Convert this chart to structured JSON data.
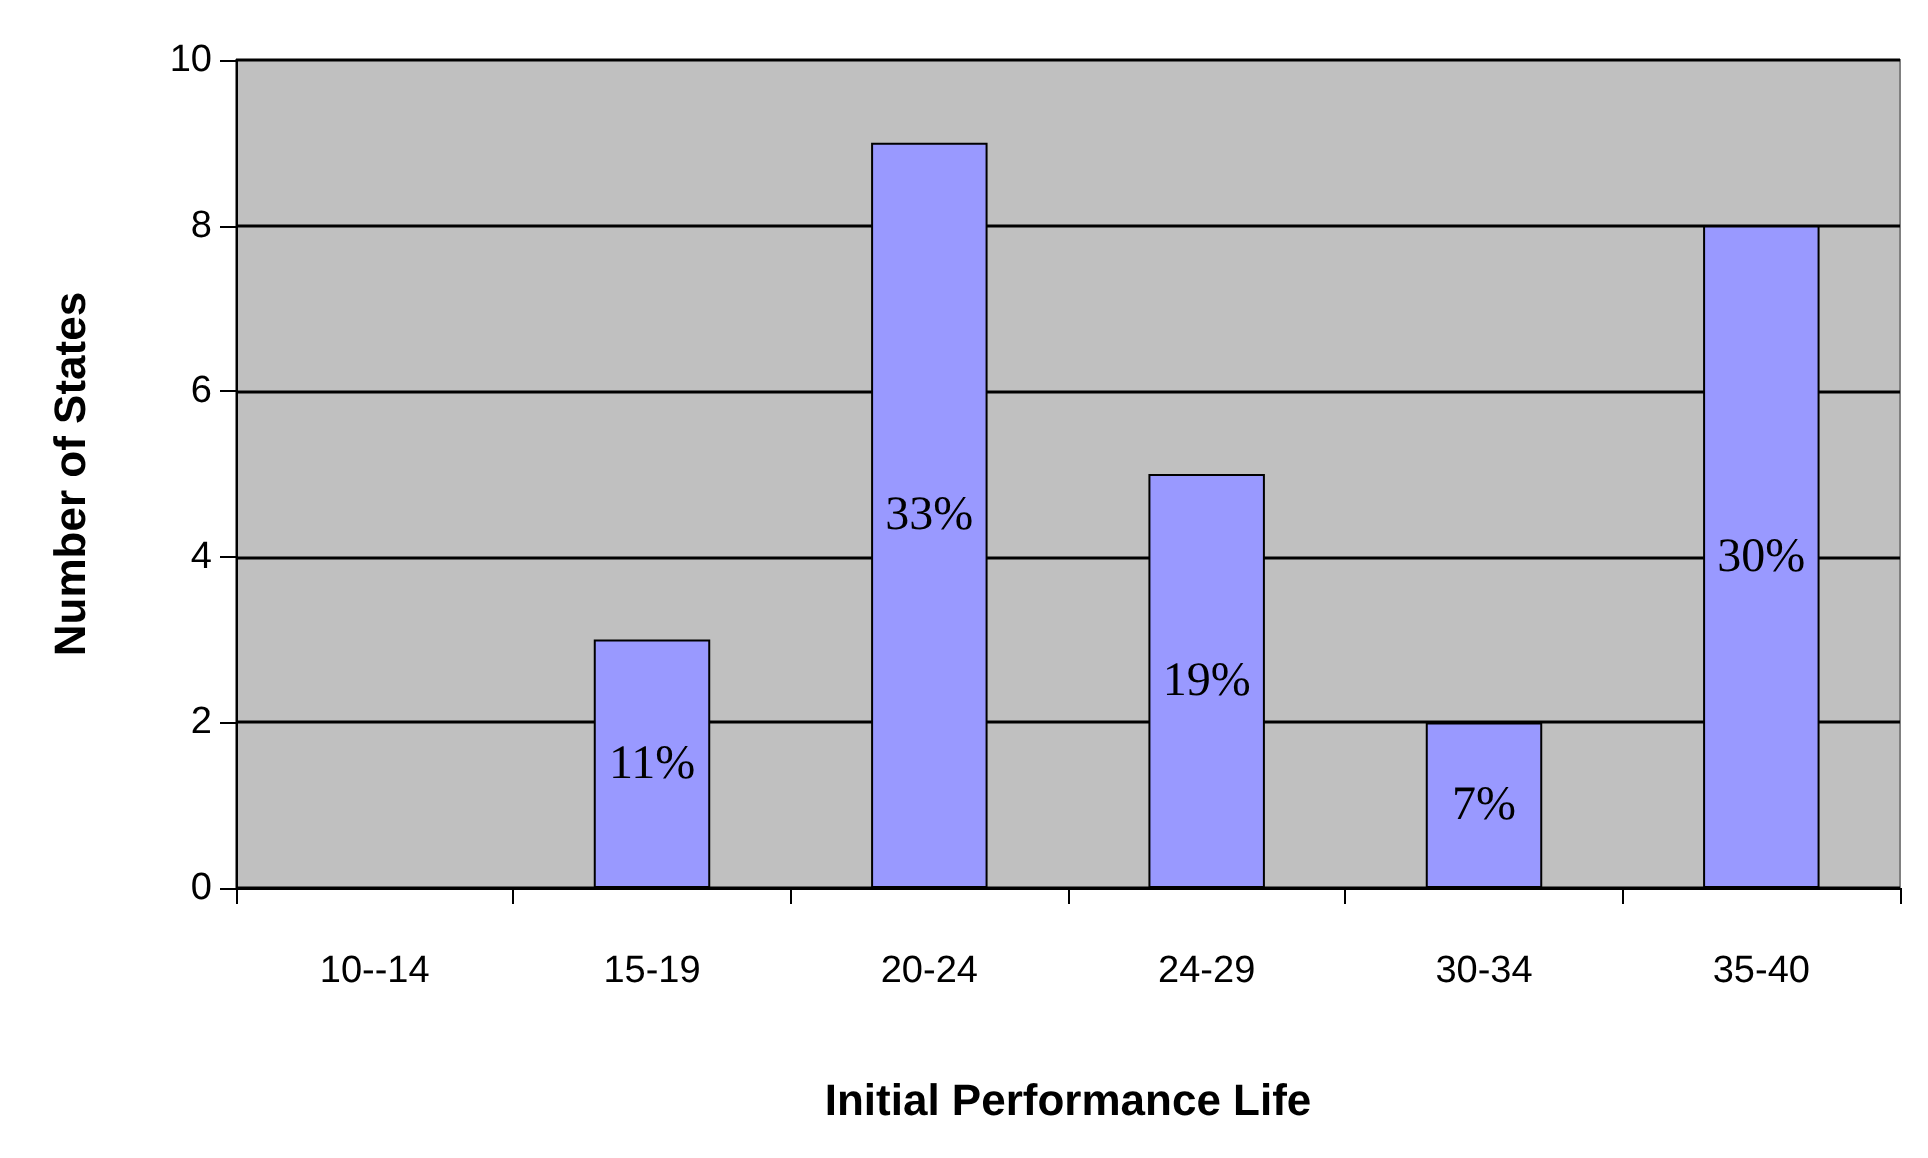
{
  "chart_data": {
    "type": "bar",
    "xlabel": "Initial Performance Life",
    "ylabel": "Number of States",
    "categories": [
      "10--14",
      "15-19",
      "20-24",
      "24-29",
      "30-34",
      "35-40"
    ],
    "values": [
      0,
      3,
      9,
      5,
      2,
      8
    ],
    "annotations": [
      "11%",
      "33%",
      "19%",
      "7%",
      "30%"
    ],
    "color": "#9999ff",
    "ylim": [
      0,
      10
    ],
    "yticks": [
      0,
      2,
      4,
      6,
      8,
      10
    ],
    "grid": "y"
  }
}
